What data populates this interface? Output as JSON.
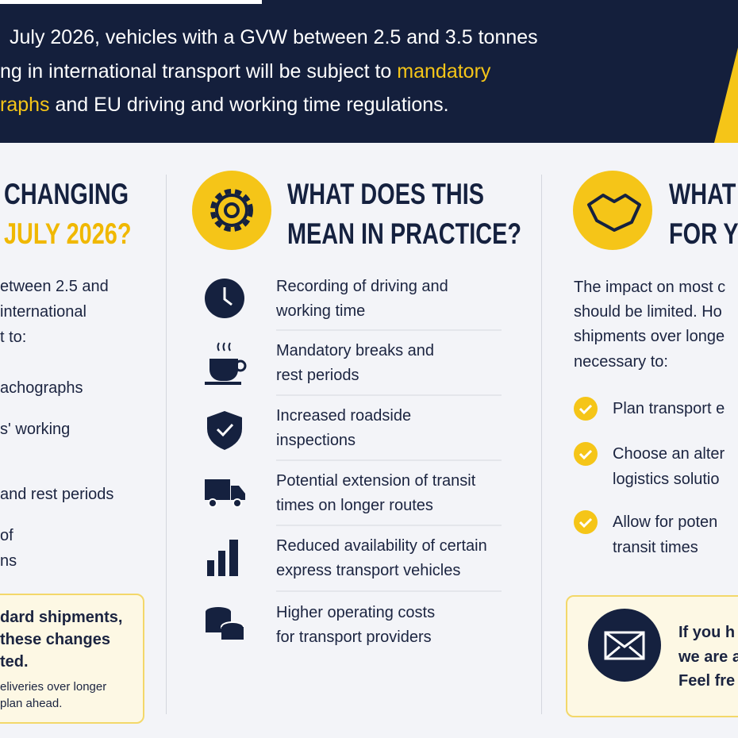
{
  "header": {
    "lines": [
      [
        {
          "text": "July 2026, vehicles with a GVW between 2.5 and 3.5 tonnes"
        }
      ],
      [
        {
          "text": "ng in international transport will be subject to "
        },
        {
          "text": "mandatory",
          "highlight": true
        }
      ],
      [
        {
          "text": "raphs",
          "highlight": true
        },
        {
          "text": " and EU driving and working time regulations."
        }
      ]
    ]
  },
  "left": {
    "heading": [
      "CHANGING",
      "JULY 2026?"
    ],
    "intro": [
      "etween 2.5 and",
      "international",
      "t to:"
    ],
    "items": [
      "achographs",
      "s' working",
      "and rest periods",
      "of",
      "ns"
    ],
    "note": {
      "bold": [
        "dard shipments,",
        "these changes",
        "ted."
      ],
      "small": [
        "eliveries over longer",
        "plan ahead."
      ]
    }
  },
  "middle": {
    "heading": [
      "WHAT DOES THIS",
      "MEAN IN PRACTICE?"
    ],
    "items": [
      [
        "Recording of driving and",
        "working time"
      ],
      [
        "Mandatory breaks and",
        "rest periods"
      ],
      [
        "Increased roadside",
        "inspections"
      ],
      [
        "Potential extension of transit",
        "times on longer routes"
      ],
      [
        "Reduced availability of certain",
        "express transport vehicles"
      ],
      [
        "Higher operating costs",
        "for transport providers"
      ]
    ]
  },
  "right": {
    "heading": [
      "WHAT",
      "FOR YO"
    ],
    "intro": [
      "The impact on most c",
      "should be limited. Ho",
      "shipments over longe",
      "necessary to:"
    ],
    "checks": [
      [
        "Plan transport e"
      ],
      [
        "Choose an alter",
        "logistics solutio"
      ],
      [
        "Allow for poten",
        "transit times"
      ]
    ],
    "contact": [
      "If you h",
      "we are a",
      "Feel fre"
    ]
  }
}
